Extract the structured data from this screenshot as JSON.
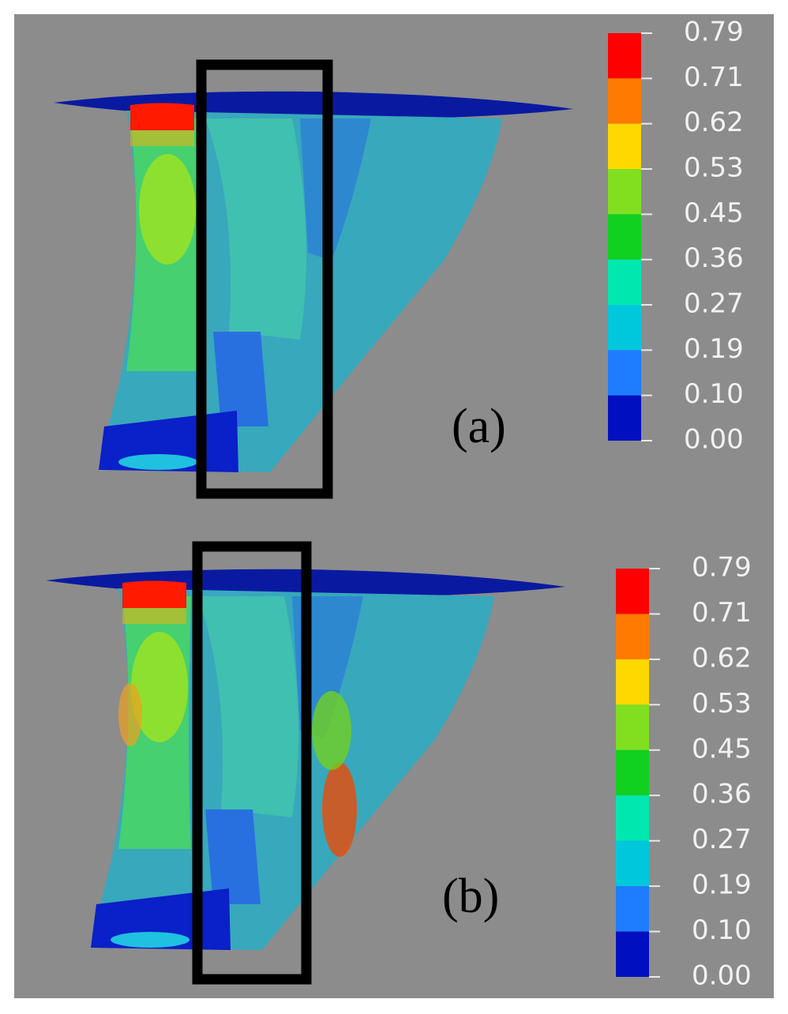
{
  "panels": [
    {
      "label": "(a)",
      "scale": [
        "0.79",
        "0.71",
        "0.62",
        "0.53",
        "0.45",
        "0.36",
        "0.27",
        "0.19",
        "0.10",
        "0.00"
      ]
    },
    {
      "label": "(b)",
      "scale": [
        "0.79",
        "0.71",
        "0.62",
        "0.53",
        "0.45",
        "0.36",
        "0.27",
        "0.19",
        "0.10",
        "0.00"
      ]
    }
  ],
  "colors": [
    "#ff0000",
    "#ff7a00",
    "#ffd800",
    "#80e020",
    "#10d020",
    "#00e8b0",
    "#00c8dc",
    "#1e7cff",
    "#0010c0"
  ]
}
